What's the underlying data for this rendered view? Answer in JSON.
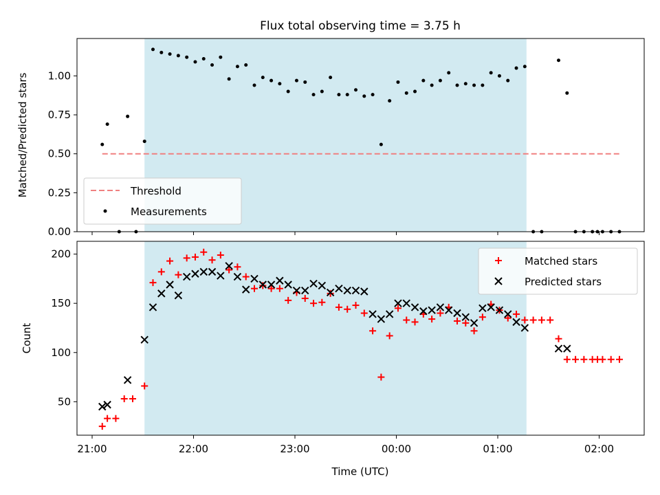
{
  "title": "Flux total observing time = 3.75 h",
  "colors": {
    "shade": "#add8e6",
    "threshold": "#f08080",
    "matched": "#ff0000",
    "predicted": "#000000",
    "measurements": "#000000"
  },
  "chart_data": [
    {
      "type": "scatter",
      "ylabel": "Matched/Predicted stars",
      "ylim": [
        0,
        1.24
      ],
      "yticks": [
        0.0,
        0.25,
        0.5,
        0.75,
        1.0
      ],
      "ytick_labels": [
        "0.00",
        "0.25",
        "0.50",
        "0.75",
        "1.00"
      ],
      "shaded_span": [
        "21:31",
        "01:17"
      ],
      "legend_position": "lower-left",
      "threshold": {
        "name": "Threshold",
        "y": 0.5,
        "x_range": [
          "21:06",
          "02:12"
        ]
      },
      "measurements": {
        "name": "Measurements",
        "points": [
          [
            "21:06",
            0.56
          ],
          [
            "21:09",
            0.69
          ],
          [
            "21:16",
            0.0
          ],
          [
            "21:21",
            0.74
          ],
          [
            "21:26",
            0.0
          ],
          [
            "21:31",
            0.58
          ],
          [
            "21:36",
            1.17
          ],
          [
            "21:41",
            1.15
          ],
          [
            "21:46",
            1.14
          ],
          [
            "21:51",
            1.13
          ],
          [
            "21:56",
            1.12
          ],
          [
            "22:01",
            1.09
          ],
          [
            "22:06",
            1.11
          ],
          [
            "22:11",
            1.07
          ],
          [
            "22:16",
            1.12
          ],
          [
            "22:21",
            0.98
          ],
          [
            "22:26",
            1.06
          ],
          [
            "22:31",
            1.07
          ],
          [
            "22:36",
            0.94
          ],
          [
            "22:41",
            0.99
          ],
          [
            "22:46",
            0.97
          ],
          [
            "22:51",
            0.95
          ],
          [
            "22:56",
            0.9
          ],
          [
            "23:01",
            0.97
          ],
          [
            "23:06",
            0.96
          ],
          [
            "23:11",
            0.88
          ],
          [
            "23:16",
            0.9
          ],
          [
            "23:21",
            0.99
          ],
          [
            "23:26",
            0.88
          ],
          [
            "23:31",
            0.88
          ],
          [
            "23:36",
            0.91
          ],
          [
            "23:41",
            0.87
          ],
          [
            "23:46",
            0.88
          ],
          [
            "23:51",
            0.56
          ],
          [
            "23:56",
            0.84
          ],
          [
            "00:01",
            0.96
          ],
          [
            "00:06",
            0.89
          ],
          [
            "00:11",
            0.9
          ],
          [
            "00:16",
            0.97
          ],
          [
            "00:21",
            0.94
          ],
          [
            "00:26",
            0.97
          ],
          [
            "00:31",
            1.02
          ],
          [
            "00:36",
            0.94
          ],
          [
            "00:41",
            0.95
          ],
          [
            "00:46",
            0.94
          ],
          [
            "00:51",
            0.94
          ],
          [
            "00:56",
            1.02
          ],
          [
            "01:01",
            1.0
          ],
          [
            "01:06",
            0.97
          ],
          [
            "01:11",
            1.05
          ],
          [
            "01:16",
            1.06
          ],
          [
            "01:21",
            0.0
          ],
          [
            "01:26",
            0.0
          ],
          [
            "01:36",
            1.1
          ],
          [
            "01:41",
            0.89
          ],
          [
            "01:46",
            0.0
          ],
          [
            "01:51",
            0.0
          ],
          [
            "01:56",
            0.0
          ],
          [
            "01:59",
            0.0
          ],
          [
            "02:02",
            0.0
          ],
          [
            "02:07",
            0.0
          ],
          [
            "02:12",
            0.0
          ]
        ]
      }
    },
    {
      "type": "scatter",
      "ylabel": "Count",
      "xlabel": "Time (UTC)",
      "ylim": [
        16,
        213
      ],
      "yticks": [
        50,
        100,
        150,
        200
      ],
      "ytick_labels": [
        "50",
        "100",
        "150",
        "200"
      ],
      "xticks": [
        "21:00",
        "22:00",
        "23:00",
        "00:00",
        "01:00",
        "02:00"
      ],
      "shaded_span": [
        "21:31",
        "01:17"
      ],
      "legend_position": "upper-right",
      "matched": {
        "name": "Matched stars",
        "points": [
          [
            "21:06",
            25
          ],
          [
            "21:09",
            33
          ],
          [
            "21:14",
            33
          ],
          [
            "21:19",
            53
          ],
          [
            "21:24",
            53
          ],
          [
            "21:31",
            66
          ],
          [
            "21:36",
            171
          ],
          [
            "21:41",
            182
          ],
          [
            "21:46",
            193
          ],
          [
            "21:51",
            179
          ],
          [
            "21:56",
            196
          ],
          [
            "22:01",
            197
          ],
          [
            "22:06",
            202
          ],
          [
            "22:11",
            194
          ],
          [
            "22:16",
            199
          ],
          [
            "22:21",
            184
          ],
          [
            "22:26",
            187
          ],
          [
            "22:31",
            177
          ],
          [
            "22:36",
            165
          ],
          [
            "22:41",
            168
          ],
          [
            "22:46",
            165
          ],
          [
            "22:51",
            165
          ],
          [
            "22:56",
            153
          ],
          [
            "23:01",
            161
          ],
          [
            "23:06",
            155
          ],
          [
            "23:11",
            150
          ],
          [
            "23:16",
            151
          ],
          [
            "23:21",
            160
          ],
          [
            "23:26",
            146
          ],
          [
            "23:31",
            144
          ],
          [
            "23:36",
            148
          ],
          [
            "23:41",
            140
          ],
          [
            "23:46",
            122
          ],
          [
            "23:51",
            75
          ],
          [
            "23:56",
            117
          ],
          [
            "00:01",
            145
          ],
          [
            "00:06",
            133
          ],
          [
            "00:11",
            131
          ],
          [
            "00:16",
            139
          ],
          [
            "00:21",
            134
          ],
          [
            "00:26",
            140
          ],
          [
            "00:31",
            146
          ],
          [
            "00:36",
            132
          ],
          [
            "00:41",
            130
          ],
          [
            "00:46",
            122
          ],
          [
            "00:51",
            136
          ],
          [
            "00:56",
            149
          ],
          [
            "01:01",
            143
          ],
          [
            "01:06",
            135
          ],
          [
            "01:11",
            139
          ],
          [
            "01:16",
            133
          ],
          [
            "01:21",
            133
          ],
          [
            "01:26",
            133
          ],
          [
            "01:31",
            133
          ],
          [
            "01:36",
            114
          ],
          [
            "01:41",
            93
          ],
          [
            "01:46",
            93
          ],
          [
            "01:51",
            93
          ],
          [
            "01:56",
            93
          ],
          [
            "01:59",
            93
          ],
          [
            "02:02",
            93
          ],
          [
            "02:07",
            93
          ],
          [
            "02:12",
            93
          ]
        ]
      },
      "predicted": {
        "name": "Predicted stars",
        "points": [
          [
            "21:06",
            45
          ],
          [
            "21:09",
            47
          ],
          [
            "21:21",
            72
          ],
          [
            "21:31",
            113
          ],
          [
            "21:36",
            146
          ],
          [
            "21:41",
            160
          ],
          [
            "21:46",
            169
          ],
          [
            "21:51",
            158
          ],
          [
            "21:56",
            177
          ],
          [
            "22:01",
            180
          ],
          [
            "22:06",
            182
          ],
          [
            "22:11",
            182
          ],
          [
            "22:16",
            178
          ],
          [
            "22:21",
            188
          ],
          [
            "22:26",
            177
          ],
          [
            "22:31",
            164
          ],
          [
            "22:36",
            175
          ],
          [
            "22:41",
            169
          ],
          [
            "22:46",
            169
          ],
          [
            "22:51",
            173
          ],
          [
            "22:56",
            169
          ],
          [
            "23:01",
            163
          ],
          [
            "23:06",
            163
          ],
          [
            "23:11",
            170
          ],
          [
            "23:16",
            168
          ],
          [
            "23:21",
            161
          ],
          [
            "23:26",
            165
          ],
          [
            "23:31",
            163
          ],
          [
            "23:36",
            163
          ],
          [
            "23:41",
            162
          ],
          [
            "23:46",
            139
          ],
          [
            "23:51",
            134
          ],
          [
            "23:56",
            139
          ],
          [
            "00:01",
            150
          ],
          [
            "00:06",
            150
          ],
          [
            "00:11",
            146
          ],
          [
            "00:16",
            142
          ],
          [
            "00:21",
            143
          ],
          [
            "00:26",
            146
          ],
          [
            "00:31",
            143
          ],
          [
            "00:36",
            140
          ],
          [
            "00:41",
            136
          ],
          [
            "00:46",
            130
          ],
          [
            "00:51",
            145
          ],
          [
            "00:56",
            146
          ],
          [
            "01:01",
            143
          ],
          [
            "01:06",
            139
          ],
          [
            "01:11",
            131
          ],
          [
            "01:16",
            125
          ],
          [
            "01:36",
            104
          ],
          [
            "01:41",
            104
          ]
        ]
      }
    }
  ]
}
